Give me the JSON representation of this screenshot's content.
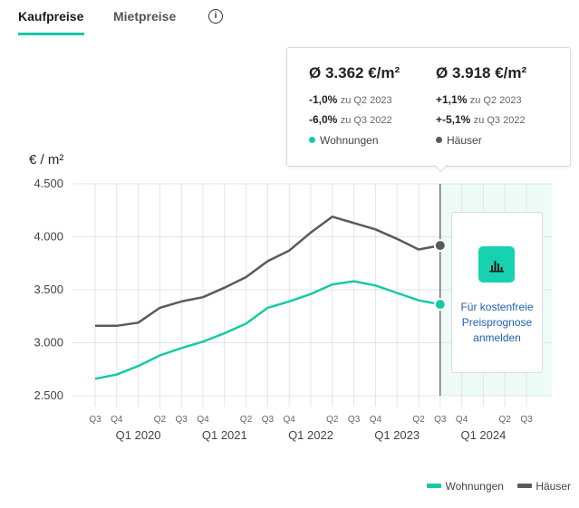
{
  "tabs": {
    "active": "Kaufpreise",
    "inactive": "Mietpreise",
    "info_icon": "info-icon"
  },
  "tooltip": {
    "wohnungen": {
      "average": "Ø 3.362 €/m²",
      "change_q": "-1,0%",
      "change_q_label": "zu Q2 2023",
      "change_y": "-6,0%",
      "change_y_label": "zu Q3 2022",
      "legend": "Wohnungen"
    },
    "haeuser": {
      "average": "Ø 3.918 €/m²",
      "change_q": "+1,1%",
      "change_q_label": "zu Q2 2023",
      "change_y": "+-5,1%",
      "change_y_label": "zu Q3 2022",
      "legend": "Häuser"
    }
  },
  "cta": {
    "label": "Für kostenfreie Preisprognose anmelden",
    "icon": "bar-chart-icon"
  },
  "colors": {
    "wohnungen": "#16c9a6",
    "haeuser": "#5a5a5a",
    "forecast_bg": "#eefcf8"
  },
  "chart_data": {
    "type": "line",
    "ylabel": "€ / m²",
    "ylim": [
      2500,
      4500
    ],
    "yticks": [
      "4.500",
      "4.000",
      "3.500",
      "3.000",
      "2.500"
    ],
    "ytick_values": [
      4500,
      4000,
      3500,
      3000,
      2500
    ],
    "x": [
      "Q3 2019",
      "Q4 2019",
      "Q1 2020",
      "Q2 2020",
      "Q3 2020",
      "Q4 2020",
      "Q1 2021",
      "Q2 2021",
      "Q3 2021",
      "Q4 2021",
      "Q1 2022",
      "Q2 2022",
      "Q3 2022",
      "Q4 2022",
      "Q1 2023",
      "Q2 2023",
      "Q3 2023",
      "Q4 2023",
      "Q1 2024",
      "Q2 2024",
      "Q3 2024"
    ],
    "quarter_labels": [
      "Q3",
      "Q4",
      "",
      "Q2",
      "Q3",
      "Q4",
      "",
      "Q2",
      "Q3",
      "Q4",
      "",
      "Q2",
      "Q3",
      "Q4",
      "",
      "Q2",
      "Q3",
      "Q4",
      "",
      "Q2",
      "Q3"
    ],
    "year_labels": [
      {
        "index": 2,
        "label": "Q1 2020"
      },
      {
        "index": 6,
        "label": "Q1 2021"
      },
      {
        "index": 10,
        "label": "Q1 2022"
      },
      {
        "index": 14,
        "label": "Q1 2023"
      },
      {
        "index": 18,
        "label": "Q1 2024"
      }
    ],
    "highlight_index": 16,
    "series": [
      {
        "name": "Wohnungen",
        "values": [
          2660,
          2700,
          2780,
          2880,
          2950,
          3010,
          3090,
          3180,
          3330,
          3390,
          3460,
          3550,
          3580,
          3540,
          3470,
          3400,
          3362,
          null,
          null,
          null,
          null
        ]
      },
      {
        "name": "Häuser",
        "values": [
          3160,
          3160,
          3190,
          3330,
          3390,
          3430,
          3520,
          3620,
          3770,
          3870,
          4040,
          4190,
          4130,
          4070,
          3980,
          3880,
          3918,
          null,
          null,
          null,
          null
        ]
      }
    ],
    "grid": true,
    "legend_position": "bottom-right"
  }
}
